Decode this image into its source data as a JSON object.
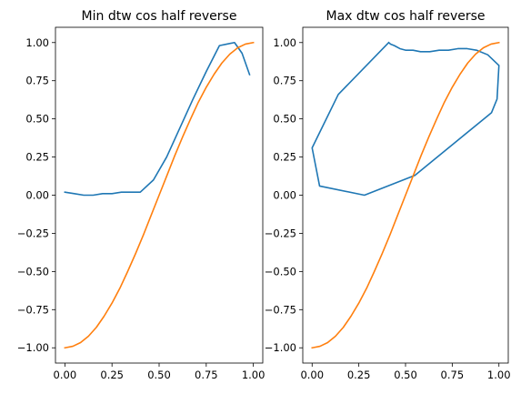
{
  "colors": {
    "series_1": "#1f77b4",
    "series_2": "#ff7f0e"
  },
  "chart_data": [
    {
      "type": "line",
      "title": "Min dtw cos half reverse",
      "xlabel": "",
      "ylabel": "",
      "xlim": [
        -0.05,
        1.05
      ],
      "ylim": [
        -1.1,
        1.1
      ],
      "xticks": [
        0.0,
        0.25,
        0.5,
        0.75,
        1.0
      ],
      "xtick_labels": [
        "0.00",
        "0.25",
        "0.50",
        "0.75",
        "1.00"
      ],
      "yticks": [
        1.0,
        0.75,
        0.5,
        0.25,
        0.0,
        -0.25,
        -0.5,
        -0.75,
        -1.0
      ],
      "ytick_labels": [
        "1.00",
        "0.75",
        "0.50",
        "0.25",
        "0.00",
        "−0.25",
        "−0.50",
        "−0.75",
        "−1.00"
      ],
      "grid": false,
      "series": [
        {
          "color_key": "series_1",
          "x": [
            0.0,
            0.05,
            0.1,
            0.15,
            0.2,
            0.25,
            0.3,
            0.35,
            0.4,
            0.47,
            0.54,
            0.61,
            0.68,
            0.75,
            0.82,
            0.86,
            0.9,
            0.94,
            0.98
          ],
          "y": [
            0.02,
            0.01,
            0.0,
            0.0,
            0.01,
            0.01,
            0.02,
            0.02,
            0.02,
            0.1,
            0.25,
            0.44,
            0.63,
            0.81,
            0.98,
            0.99,
            1.0,
            0.93,
            0.79
          ]
        },
        {
          "color_key": "series_2",
          "x": [
            0.0,
            0.042,
            0.083,
            0.125,
            0.167,
            0.208,
            0.25,
            0.292,
            0.333,
            0.375,
            0.417,
            0.458,
            0.5,
            0.542,
            0.583,
            0.625,
            0.667,
            0.708,
            0.75,
            0.792,
            0.833,
            0.875,
            0.917,
            0.958,
            1.0
          ],
          "y": [
            -1.0,
            -0.99,
            -0.966,
            -0.924,
            -0.866,
            -0.793,
            -0.707,
            -0.609,
            -0.5,
            -0.383,
            -0.259,
            -0.131,
            0.0,
            0.131,
            0.259,
            0.383,
            0.5,
            0.609,
            0.707,
            0.793,
            0.866,
            0.924,
            0.966,
            0.99,
            1.0
          ]
        }
      ]
    },
    {
      "type": "line",
      "title": "Max dtw cos half reverse",
      "xlabel": "",
      "ylabel": "",
      "xlim": [
        -0.05,
        1.05
      ],
      "ylim": [
        -1.1,
        1.1
      ],
      "xticks": [
        0.0,
        0.25,
        0.5,
        0.75,
        1.0
      ],
      "xtick_labels": [
        "0.00",
        "0.25",
        "0.50",
        "0.75",
        "1.00"
      ],
      "yticks": [
        1.0,
        0.75,
        0.5,
        0.25,
        0.0,
        -0.25,
        -0.5,
        -0.75,
        -1.0
      ],
      "ytick_labels": [
        "1.00",
        "0.75",
        "0.50",
        "0.25",
        "0.00",
        "−0.25",
        "−0.50",
        "−0.75",
        "−1.00"
      ],
      "grid": false,
      "series": [
        {
          "color_key": "series_1",
          "x": [
            0.41,
            0.42,
            0.44,
            0.47,
            0.5,
            0.54,
            0.58,
            0.63,
            0.68,
            0.73,
            0.78,
            0.83,
            0.88,
            0.94,
            1.0,
            0.99,
            0.96,
            0.8,
            0.55,
            0.28,
            0.04,
            0.0,
            0.14,
            0.41
          ],
          "y": [
            1.0,
            0.99,
            0.98,
            0.96,
            0.95,
            0.95,
            0.94,
            0.94,
            0.95,
            0.95,
            0.96,
            0.96,
            0.95,
            0.92,
            0.85,
            0.63,
            0.54,
            0.38,
            0.13,
            0.0,
            0.06,
            0.31,
            0.66,
            1.0
          ]
        },
        {
          "color_key": "series_2",
          "x": [
            0.0,
            0.042,
            0.083,
            0.125,
            0.167,
            0.208,
            0.25,
            0.292,
            0.333,
            0.375,
            0.417,
            0.458,
            0.5,
            0.542,
            0.583,
            0.625,
            0.667,
            0.708,
            0.75,
            0.792,
            0.833,
            0.875,
            0.917,
            0.958,
            1.0
          ],
          "y": [
            -1.0,
            -0.99,
            -0.966,
            -0.924,
            -0.866,
            -0.793,
            -0.707,
            -0.609,
            -0.5,
            -0.383,
            -0.259,
            -0.131,
            0.0,
            0.131,
            0.259,
            0.383,
            0.5,
            0.609,
            0.707,
            0.793,
            0.866,
            0.924,
            0.966,
            0.99,
            1.0
          ]
        }
      ]
    }
  ]
}
